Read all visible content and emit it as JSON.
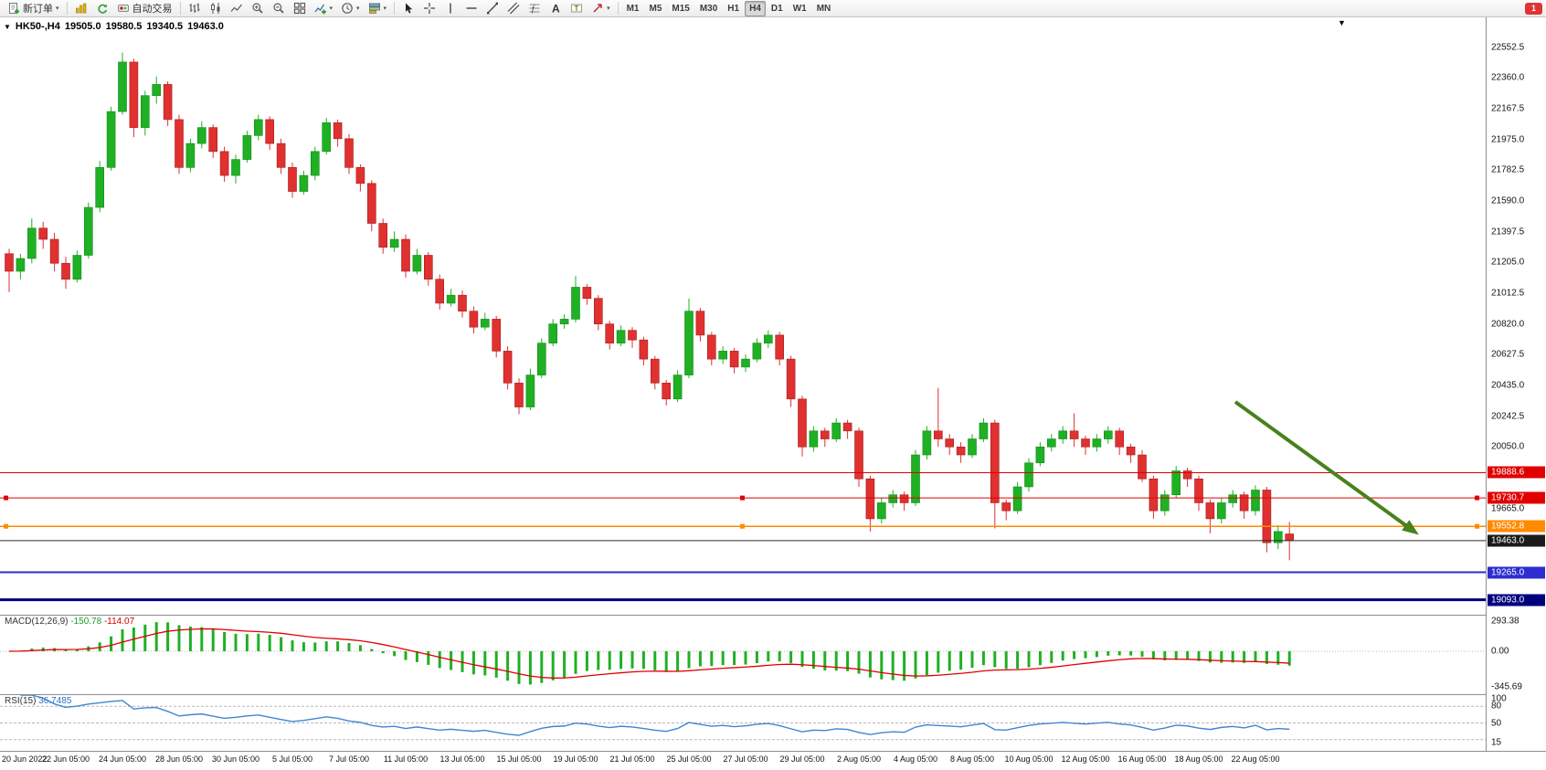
{
  "window": {
    "toolbar": {
      "new_order": {
        "label": "新订单"
      },
      "autotrading": {
        "label": "自动交易"
      },
      "quick_icons": [
        "charts",
        "refresh"
      ],
      "chart_tools": [
        "bars",
        "candles",
        "line",
        "zoom-in",
        "zoom-out",
        "tile-windows",
        "indicators",
        "periods",
        "templates"
      ],
      "draw_tools": [
        "cursor",
        "crosshair",
        "vertical-line",
        "horizontal-line",
        "trendline",
        "channel",
        "fibonacci",
        "text",
        "text-label",
        "arrows"
      ],
      "timeframes": {
        "items": [
          "M1",
          "M5",
          "M15",
          "M30",
          "H1",
          "H4",
          "D1",
          "W1",
          "MN"
        ],
        "active": "H4"
      },
      "notification_count": "1"
    }
  },
  "chart": {
    "title": {
      "symbol_period": "HK50-,H4",
      "open": "19505.0",
      "high": "19580.5",
      "low": "19340.5",
      "close": "19463.0"
    },
    "hlines": [
      {
        "label": "19888.6",
        "value": 19888.6,
        "color": "#e00000",
        "tag": "#e00000",
        "width": 1,
        "handles": false
      },
      {
        "label": "19730.7",
        "value": 19730.7,
        "color": "#e00000",
        "tag": "#e00000",
        "width": 1,
        "handles": true
      },
      {
        "label": "19552.8",
        "value": 19552.8,
        "color": "#ff8a00",
        "tag": "#ff8a00",
        "width": 1.5,
        "handles": true
      },
      {
        "label": "19463.0",
        "value": 19463.0,
        "color": "#2b2b2b",
        "tag": "#1a1a1a",
        "width": 1,
        "handles": false
      },
      {
        "label": "19265.0",
        "value": 19265.0,
        "color": "#2d2dd0",
        "tag": "#2d2dd0",
        "width": 2,
        "handles": false
      },
      {
        "label": "19093.0",
        "value": 19093.0,
        "color": "#00007d",
        "tag": "#00007d",
        "width": 3,
        "handles": false
      }
    ],
    "annotation_arrow": {
      "color": "#47821c"
    }
  },
  "indicators": {
    "macd": {
      "label": "MACD(12,26,9)",
      "value_main": "-150.78",
      "value_signal": "-114.07",
      "axis": [
        293.38,
        0.0,
        -345.69
      ]
    },
    "rsi": {
      "label": "RSI(15)",
      "value": "36.7485",
      "axis": [
        100,
        80,
        50,
        15
      ],
      "levels": [
        80,
        50,
        20
      ]
    }
  },
  "chart_data": {
    "type": "candlestick",
    "title": "HK50-,H4",
    "symbol": "HK50-",
    "timeframe": "H4",
    "current_bar": {
      "open": 19505.0,
      "high": 19580.5,
      "low": 19340.5,
      "close": 19463.0
    },
    "y_axis_ticks": [
      22552.5,
      22360.0,
      22167.5,
      21975.0,
      21782.5,
      21590.0,
      21397.5,
      21205.0,
      21012.5,
      20820.0,
      20627.5,
      20435.0,
      20242.5,
      20050.0,
      19857.5,
      19665.0,
      19472.5,
      19280.0,
      19087.5
    ],
    "horizontal_levels": [
      19888.6,
      19730.7,
      19552.8,
      19463.0,
      19265.0,
      19093.0
    ],
    "x_labels": [
      "20 Jun 2022",
      "22 Jun 05:00",
      "24 Jun 05:00",
      "28 Jun 05:00",
      "30 Jun 05:00",
      "5 Jul 05:00",
      "7 Jul 05:00",
      "11 Jul 05:00",
      "13 Jul 05:00",
      "15 Jul 05:00",
      "19 Jul 05:00",
      "21 Jul 05:00",
      "25 Jul 05:00",
      "27 Jul 05:00",
      "29 Jul 05:00",
      "2 Aug 05:00",
      "4 Aug 05:00",
      "8 Aug 05:00",
      "10 Aug 05:00",
      "12 Aug 05:00",
      "16 Aug 05:00",
      "18 Aug 05:00",
      "22 Aug 05:00"
    ],
    "x_label_every_n_bars": 5,
    "colors": {
      "bull": "#1fb024",
      "bear": "#e03030",
      "macd_histogram": "#1fb024",
      "macd_signal": "#e00000",
      "rsi_line": "#3f86d2",
      "arrow": "#47821c"
    },
    "candles": [
      [
        21260,
        21290,
        21020,
        21150
      ],
      [
        21150,
        21260,
        21100,
        21230
      ],
      [
        21230,
        21480,
        21200,
        21420
      ],
      [
        21420,
        21460,
        21290,
        21350
      ],
      [
        21350,
        21390,
        21150,
        21200
      ],
      [
        21200,
        21240,
        21040,
        21100
      ],
      [
        21100,
        21280,
        21080,
        21250
      ],
      [
        21250,
        21580,
        21230,
        21550
      ],
      [
        21550,
        21840,
        21520,
        21800
      ],
      [
        21800,
        22180,
        21780,
        22150
      ],
      [
        22150,
        22520,
        22130,
        22460
      ],
      [
        22460,
        22480,
        21990,
        22050
      ],
      [
        22050,
        22280,
        22000,
        22250
      ],
      [
        22250,
        22370,
        22200,
        22320
      ],
      [
        22320,
        22340,
        22060,
        22100
      ],
      [
        22100,
        22130,
        21760,
        21800
      ],
      [
        21800,
        21980,
        21770,
        21950
      ],
      [
        21950,
        22090,
        21920,
        22050
      ],
      [
        22050,
        22070,
        21860,
        21900
      ],
      [
        21900,
        21930,
        21710,
        21750
      ],
      [
        21750,
        21880,
        21700,
        21850
      ],
      [
        21850,
        22030,
        21830,
        22000
      ],
      [
        22000,
        22130,
        21970,
        22100
      ],
      [
        22100,
        22120,
        21910,
        21950
      ],
      [
        21950,
        21980,
        21760,
        21800
      ],
      [
        21800,
        21830,
        21610,
        21650
      ],
      [
        21650,
        21780,
        21630,
        21750
      ],
      [
        21750,
        21930,
        21720,
        21900
      ],
      [
        21900,
        22110,
        21880,
        22080
      ],
      [
        22080,
        22100,
        21930,
        21980
      ],
      [
        21980,
        22010,
        21760,
        21800
      ],
      [
        21800,
        21820,
        21650,
        21700
      ],
      [
        21700,
        21720,
        21400,
        21450
      ],
      [
        21450,
        21480,
        21260,
        21300
      ],
      [
        21300,
        21400,
        21270,
        21350
      ],
      [
        21350,
        21380,
        21110,
        21150
      ],
      [
        21150,
        21290,
        21130,
        21250
      ],
      [
        21250,
        21270,
        21060,
        21100
      ],
      [
        21100,
        21130,
        20910,
        20950
      ],
      [
        20950,
        21040,
        20930,
        21000
      ],
      [
        21000,
        21030,
        20860,
        20900
      ],
      [
        20900,
        20930,
        20760,
        20800
      ],
      [
        20800,
        20890,
        20780,
        20850
      ],
      [
        20850,
        20870,
        20610,
        20650
      ],
      [
        20650,
        20680,
        20410,
        20450
      ],
      [
        20450,
        20480,
        20255,
        20300
      ],
      [
        20300,
        20540,
        20280,
        20500
      ],
      [
        20500,
        20730,
        20480,
        20700
      ],
      [
        20700,
        20850,
        20680,
        20820
      ],
      [
        20820,
        20880,
        20790,
        20850
      ],
      [
        20850,
        21120,
        20830,
        21050
      ],
      [
        21050,
        21070,
        20940,
        20980
      ],
      [
        20980,
        21000,
        20780,
        20820
      ],
      [
        20820,
        20840,
        20660,
        20700
      ],
      [
        20700,
        20810,
        20680,
        20780
      ],
      [
        20780,
        20800,
        20670,
        20720
      ],
      [
        20720,
        20740,
        20560,
        20600
      ],
      [
        20600,
        20620,
        20410,
        20450
      ],
      [
        20450,
        20470,
        20310,
        20350
      ],
      [
        20350,
        20530,
        20330,
        20500
      ],
      [
        20500,
        20980,
        20480,
        20900
      ],
      [
        20900,
        20920,
        20710,
        20750
      ],
      [
        20750,
        20770,
        20560,
        20600
      ],
      [
        20600,
        20680,
        20570,
        20650
      ],
      [
        20650,
        20670,
        20510,
        20550
      ],
      [
        20550,
        20630,
        20520,
        20600
      ],
      [
        20600,
        20730,
        20580,
        20700
      ],
      [
        20700,
        20780,
        20670,
        20750
      ],
      [
        20750,
        20770,
        20560,
        20600
      ],
      [
        20600,
        20620,
        20300,
        20350
      ],
      [
        20350,
        20370,
        19990,
        20050
      ],
      [
        20050,
        20180,
        20020,
        20150
      ],
      [
        20150,
        20170,
        20050,
        20100
      ],
      [
        20100,
        20230,
        20080,
        20200
      ],
      [
        20200,
        20220,
        20100,
        20150
      ],
      [
        20150,
        20170,
        19800,
        19850
      ],
      [
        19850,
        19870,
        19520,
        19600
      ],
      [
        19600,
        19730,
        19570,
        19700
      ],
      [
        19700,
        19780,
        19670,
        19750
      ],
      [
        19750,
        19770,
        19650,
        19700
      ],
      [
        19700,
        20030,
        19680,
        20000
      ],
      [
        20000,
        20180,
        19970,
        20150
      ],
      [
        20150,
        20420,
        20050,
        20100
      ],
      [
        20100,
        20130,
        20000,
        20050
      ],
      [
        20050,
        20080,
        19950,
        20000
      ],
      [
        20000,
        20130,
        19980,
        20100
      ],
      [
        20100,
        20230,
        20080,
        20200
      ],
      [
        20200,
        20220,
        19540,
        19700
      ],
      [
        19700,
        19720,
        19590,
        19650
      ],
      [
        19650,
        19830,
        19630,
        19800
      ],
      [
        19800,
        19980,
        19770,
        19950
      ],
      [
        19950,
        20080,
        19930,
        20050
      ],
      [
        20050,
        20130,
        20020,
        20100
      ],
      [
        20100,
        20180,
        20070,
        20150
      ],
      [
        20150,
        20260,
        20050,
        20100
      ],
      [
        20100,
        20120,
        20000,
        20050
      ],
      [
        20050,
        20130,
        20020,
        20100
      ],
      [
        20100,
        20180,
        20070,
        20150
      ],
      [
        20150,
        20170,
        20000,
        20050
      ],
      [
        20050,
        20070,
        19950,
        20000
      ],
      [
        20000,
        20030,
        19830,
        19850
      ],
      [
        19850,
        19870,
        19600,
        19650
      ],
      [
        19650,
        19780,
        19620,
        19750
      ],
      [
        19750,
        19930,
        19730,
        19900
      ],
      [
        19900,
        19920,
        19800,
        19850
      ],
      [
        19850,
        19870,
        19650,
        19700
      ],
      [
        19700,
        19720,
        19510,
        19600
      ],
      [
        19600,
        19730,
        19570,
        19700
      ],
      [
        19700,
        19780,
        19670,
        19750
      ],
      [
        19750,
        19770,
        19600,
        19650
      ],
      [
        19650,
        19810,
        19620,
        19780
      ],
      [
        19780,
        19800,
        19390,
        19450
      ],
      [
        19450,
        19560,
        19410,
        19520
      ],
      [
        19505,
        19580.5,
        19340.5,
        19463
      ]
    ],
    "panes": [
      {
        "name": "MACD",
        "params": "12,26,9",
        "last_values": [
          -150.78,
          -114.07
        ],
        "axis_range": [
          -345.69,
          293.38
        ]
      },
      {
        "name": "RSI",
        "params": "15",
        "last_value": 36.7485,
        "levels": [
          80,
          50
        ]
      }
    ]
  }
}
